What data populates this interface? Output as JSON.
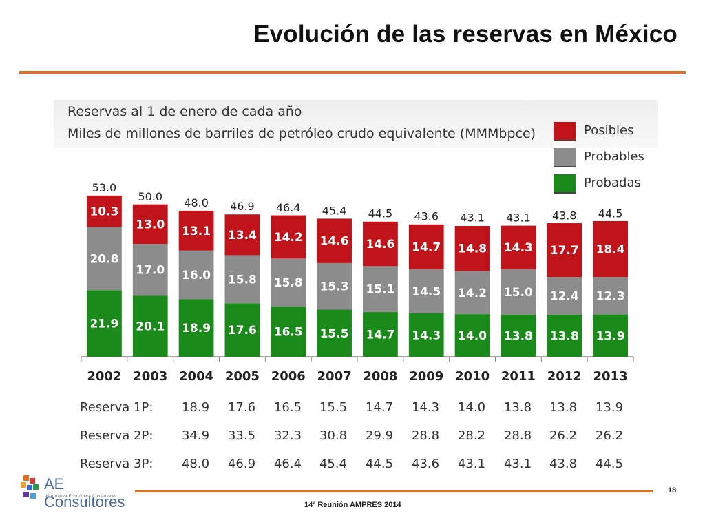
{
  "slide": {
    "title": "Evolución de las reservas en México",
    "page_number": "18",
    "footer": "14ª Reunión AMPRES 2014",
    "logo_text": "AE Consultores",
    "logo_tagline": "Alternativa Económica Consultores",
    "accent_color": "#e07020"
  },
  "panel": {
    "subtitle_1": "Reservas al 1 de enero de cada año",
    "subtitle_2": "Miles de millones de barriles de petróleo crudo equivalente (MMMbpce)"
  },
  "legend": [
    {
      "label": "Posibles",
      "color": "#c0141a"
    },
    {
      "label": "Probables",
      "color": "#8c8c8c"
    },
    {
      "label": "Probadas",
      "color": "#1a8a1a"
    }
  ],
  "chart_data": {
    "type": "bar",
    "stacked": true,
    "categories": [
      "2002",
      "2003",
      "2004",
      "2005",
      "2006",
      "2007",
      "2008",
      "2009",
      "2010",
      "2011",
      "2012",
      "2013"
    ],
    "series": [
      {
        "name": "Probadas",
        "color": "#1a8a1a",
        "values": [
          21.9,
          20.1,
          18.9,
          17.6,
          16.5,
          15.5,
          14.7,
          14.3,
          14.0,
          13.8,
          13.8,
          13.9
        ]
      },
      {
        "name": "Probables",
        "color": "#8c8c8c",
        "values": [
          20.8,
          17.0,
          16.0,
          15.8,
          15.8,
          15.3,
          15.1,
          14.5,
          14.2,
          15.0,
          12.4,
          12.3
        ]
      },
      {
        "name": "Posibles",
        "color": "#c0141a",
        "values": [
          10.3,
          13.0,
          13.1,
          13.4,
          14.2,
          14.6,
          14.6,
          14.7,
          14.8,
          14.3,
          17.7,
          18.4
        ]
      }
    ],
    "totals": [
      53.0,
      50.0,
      48.0,
      46.9,
      46.4,
      45.4,
      44.5,
      43.6,
      43.1,
      43.1,
      43.8,
      44.5
    ],
    "ylim": [
      0,
      55
    ],
    "grid": false,
    "legend_position": "top-right"
  },
  "table": {
    "rows": [
      {
        "label": "Reserva 1P:",
        "values": [
          "18.9",
          "17.6",
          "16.5",
          "15.5",
          "14.7",
          "14.3",
          "14.0",
          "13.8",
          "13.8",
          "13.9"
        ]
      },
      {
        "label": "Reserva 2P:",
        "values": [
          "34.9",
          "33.5",
          "32.3",
          "30.8",
          "29.9",
          "28.8",
          "28.2",
          "28.8",
          "26.2",
          "26.2"
        ]
      },
      {
        "label": "Reserva 3P:",
        "values": [
          "48.0",
          "46.9",
          "46.4",
          "45.4",
          "44.5",
          "43.6",
          "43.1",
          "43.1",
          "43.8",
          "44.5"
        ]
      }
    ]
  }
}
